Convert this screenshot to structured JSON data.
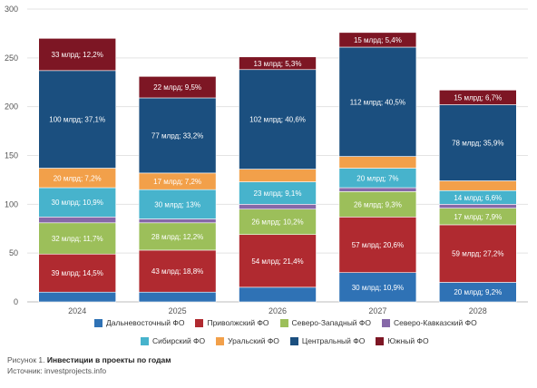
{
  "chart_data": {
    "type": "bar",
    "stacked": true,
    "categories": [
      "2024",
      "2025",
      "2026",
      "2027",
      "2028"
    ],
    "ylim": [
      0,
      300
    ],
    "yticks": [
      0,
      50,
      100,
      150,
      200,
      250,
      300
    ],
    "grid": true,
    "legend_position": "bottom",
    "series": [
      {
        "name": "Дальневосточный ФО",
        "color": "#2f72b5",
        "values": [
          10,
          10,
          15,
          30,
          20
        ],
        "labels": [
          "",
          "",
          "",
          "30 млрд; 10,9%",
          "20 млрд; 9,2%"
        ]
      },
      {
        "name": "Приволжский ФО",
        "color": "#b02a30",
        "values": [
          39,
          43,
          54,
          57,
          59
        ],
        "labels": [
          "39 млрд; 14,5%",
          "43 млрд; 18,8%",
          "54 млрд; 21,4%",
          "57 млрд; 20,6%",
          "59 млрд; 27,2%"
        ]
      },
      {
        "name": "Северо-Западный ФО",
        "color": "#9cbf5a",
        "values": [
          32,
          28,
          26,
          26,
          17
        ],
        "labels": [
          "32 млрд; 11,7%",
          "28 млрд; 12,2%",
          "26 млрд; 10,2%",
          "26 млрд; 9,3%",
          "17 млрд; 7,9%"
        ]
      },
      {
        "name": "Северо-Кавказский ФО",
        "color": "#8668a8",
        "values": [
          6,
          4,
          5,
          4,
          4
        ],
        "labels": [
          "",
          "",
          "",
          "",
          ""
        ]
      },
      {
        "name": "Сибирский ФО",
        "color": "#47b3cc",
        "values": [
          30,
          30,
          23,
          20,
          14
        ],
        "labels": [
          "30 млрд; 10,9%",
          "30 млрд; 13%",
          "23 млрд; 9,1%",
          "20 млрд; 7%",
          "14 млрд; 6,6%"
        ]
      },
      {
        "name": "Уральский ФО",
        "color": "#f2a04a",
        "values": [
          20,
          17,
          13,
          12,
          10
        ],
        "labels": [
          "20 млрд; 7,2%",
          "17 млрд; 7,2%",
          "",
          "",
          ""
        ]
      },
      {
        "name": "Центральный ФО",
        "color": "#1b4f7f",
        "values": [
          100,
          77,
          102,
          112,
          78
        ],
        "labels": [
          "100 млрд; 37,1%",
          "77 млрд; 33,2%",
          "102 млрд; 40,6%",
          "112 млрд; 40,5%",
          "78 млрд; 35,9%"
        ]
      },
      {
        "name": "Южный ФО",
        "color": "#7d1624",
        "values": [
          33,
          22,
          13,
          15,
          15
        ],
        "labels": [
          "33 млрд; 12,2%",
          "22 млрд; 9,5%",
          "13 млрд; 5,3%",
          "15 млрд; 5,4%",
          "15 млрд; 6,7%"
        ]
      }
    ],
    "legend_rows": [
      [
        0,
        1,
        2,
        3
      ],
      [
        4,
        5,
        6,
        7
      ]
    ]
  },
  "caption": {
    "prefix": "Рисунок 1. ",
    "title": "Инвестиции в проекты по годам",
    "source": "Источник: investprojects.info"
  }
}
